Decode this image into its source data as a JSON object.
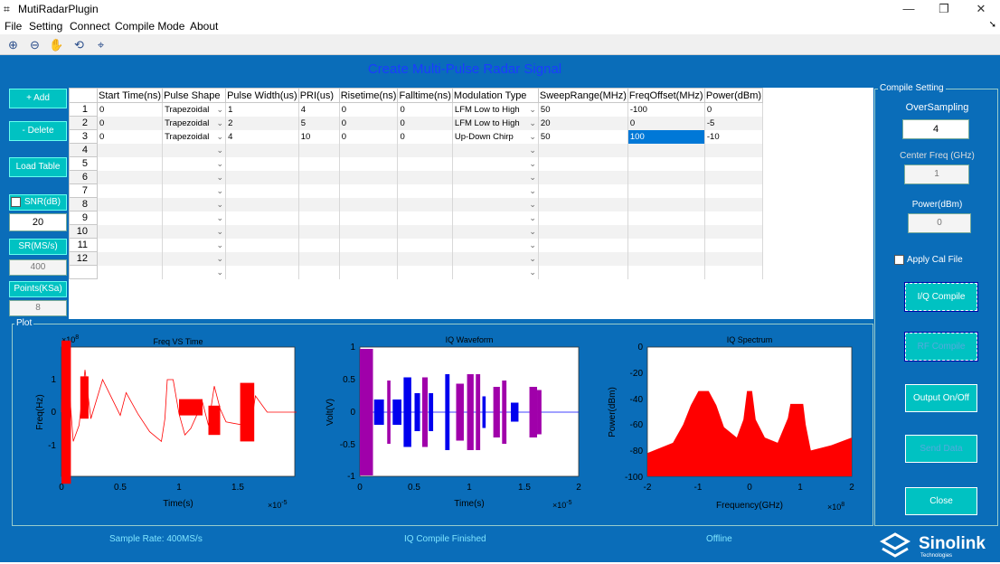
{
  "window": {
    "title": "MutiRadarPlugin",
    "controls": [
      "—",
      "❐",
      "✕"
    ]
  },
  "menu": [
    "File",
    "Setting",
    "Connect",
    "Compile Mode",
    "About"
  ],
  "toolbar_icons": [
    "zoom-in-icon",
    "zoom-out-icon",
    "pan-icon",
    "rotate-icon",
    "data-cursor-icon"
  ],
  "heading": "Create Multi-Pulse  Radar Signal",
  "left": {
    "add": "+ Add",
    "delete": "- Delete",
    "load_table": "Load Table",
    "snr_label": "SNR(dB)",
    "snr_value": "20",
    "sr_label": "SR(MS/s)",
    "sr_value": "400",
    "points_label": "Points(KSa)",
    "points_value": "8"
  },
  "table": {
    "columns": [
      "Start Time(ns)",
      "Pulse Shape",
      "Pulse Width(us)",
      "PRI(us)",
      "Risetime(ns)",
      "Falltime(ns)",
      "Modulation Type",
      "SweepRange(MHz)",
      "FreqOffset(MHz)",
      "Power(dBm)"
    ],
    "rows": [
      [
        "0",
        "Trapezoidal",
        "1",
        "4",
        "0",
        "0",
        "LFM Low to High",
        "50",
        "-100",
        "0"
      ],
      [
        "0",
        "Trapezoidal",
        "2",
        "5",
        "0",
        "0",
        "LFM Low to High",
        "20",
        "0",
        "-5"
      ],
      [
        "0",
        "Trapezoidal",
        "4",
        "10",
        "0",
        "0",
        "Up-Down Chirp",
        "50",
        "100",
        "-10"
      ],
      [
        "",
        "",
        "",
        "",
        "",
        "",
        "",
        "",
        "",
        ""
      ],
      [
        "",
        "",
        "",
        "",
        "",
        "",
        "",
        "",
        "",
        ""
      ],
      [
        "",
        "",
        "",
        "",
        "",
        "",
        "",
        "",
        "",
        ""
      ],
      [
        "",
        "",
        "",
        "",
        "",
        "",
        "",
        "",
        "",
        ""
      ],
      [
        "",
        "",
        "",
        "",
        "",
        "",
        "",
        "",
        "",
        ""
      ],
      [
        "",
        "",
        "",
        "",
        "",
        "",
        "",
        "",
        "",
        ""
      ],
      [
        "",
        "",
        "",
        "",
        "",
        "",
        "",
        "",
        "",
        ""
      ],
      [
        "",
        "",
        "",
        "",
        "",
        "",
        "",
        "",
        "",
        ""
      ],
      [
        "",
        "",
        "",
        "",
        "",
        "",
        "",
        "",
        "",
        ""
      ],
      [
        "",
        "",
        "",
        "",
        "",
        "",
        "",
        "",
        "",
        ""
      ]
    ],
    "row_numbers": [
      "1",
      "2",
      "3",
      "4",
      "5",
      "6",
      "7",
      "8",
      "9",
      "10",
      "11",
      "12",
      ""
    ]
  },
  "plot_label": "Plot",
  "compile": {
    "label": "Compile Setting",
    "oversampling_label": "OverSampling",
    "oversampling_value": "4",
    "center_freq_label": "Center Freq (GHz)",
    "center_freq_value": "1",
    "power_label": "Power(dBm)",
    "power_value": "0",
    "apply_cal": "Apply Cal File",
    "iq_compile": "I/Q Compile",
    "rf_compile": "RF Compile",
    "output": "Output On/Off",
    "send_data": "Send Data",
    "close": "Close"
  },
  "status": {
    "sample_rate": "Sample Rate: 400MS/s",
    "compile": "IQ Compile Finished",
    "connection": "Offline"
  },
  "logo": {
    "name": "Sinolink",
    "sub": "Technologies"
  },
  "charts": {
    "freq": {
      "title": "Freq VS Time",
      "xlabel": "Time(s)",
      "ylabel": "Freq(Hz)",
      "xticks": [
        "0",
        "0.5",
        "1",
        "1.5"
      ],
      "yticks": [
        "1",
        "0",
        "-1"
      ],
      "xexp": "×10",
      "xexp_pow": "-5",
      "yexp": "×10",
      "yexp_pow": "8"
    },
    "iq": {
      "title": "IQ Waveform",
      "xlabel": "Time(s)",
      "ylabel": "Volt(V)",
      "xticks": [
        "0",
        "0.5",
        "1",
        "1.5",
        "2"
      ],
      "yticks": [
        "1",
        "0.5",
        "0",
        "-0.5",
        "-1"
      ],
      "xexp": "×10",
      "xexp_pow": "-5"
    },
    "spec": {
      "title": "IQ Spectrum",
      "xlabel": "Frequency(GHz)",
      "ylabel": "Power(dBm)",
      "xticks": [
        "-2",
        "-1",
        "0",
        "1",
        "2"
      ],
      "yticks": [
        "0",
        "-20",
        "-40",
        "-60",
        "-80",
        "-100"
      ],
      "xexp": "×10",
      "xexp_pow": "8"
    }
  },
  "colors": {
    "bg": "#0a6db9",
    "button": "#00c2c2",
    "signal_red": "#ff0000",
    "signal_blue": "#0000ff",
    "heading": "#1a3cff"
  }
}
